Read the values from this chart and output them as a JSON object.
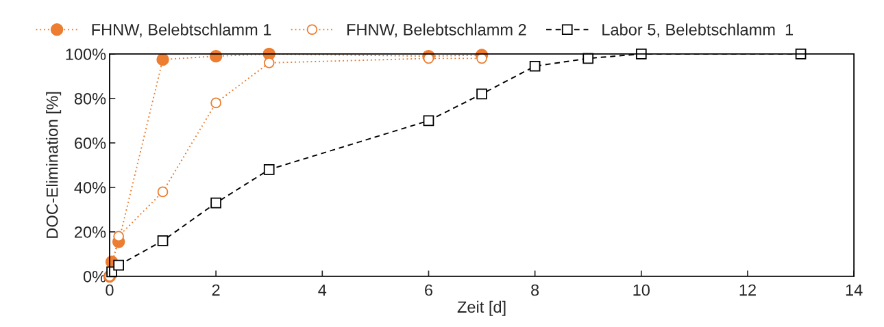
{
  "chart_data": {
    "type": "line",
    "xlabel": "Zeit [d]",
    "ylabel": "DOC-Elimination [%]",
    "xlim": [
      0,
      14
    ],
    "xticks": [
      0,
      2,
      4,
      6,
      8,
      10,
      12,
      14
    ],
    "ylim": [
      0,
      100
    ],
    "yticks": [
      {
        "value": 0,
        "label": "0%"
      },
      {
        "value": 20,
        "label": "20%"
      },
      {
        "value": 40,
        "label": "40%"
      },
      {
        "value": 60,
        "label": "60%"
      },
      {
        "value": 80,
        "label": "80%"
      },
      {
        "value": 100,
        "label": "100%"
      }
    ],
    "grid": false,
    "legend": "top",
    "series": [
      {
        "name": "FHNW, Belebtschlamm 1",
        "color": "#ed7d31",
        "marker": "circle",
        "line_style": "dotted",
        "x": [
          0,
          0.04,
          0.17,
          1,
          2,
          3,
          6,
          7
        ],
        "values": [
          0,
          6.5,
          15.5,
          97.5,
          99,
          100,
          99,
          99.5
        ]
      },
      {
        "name": "FHNW, Belebtschlamm 2",
        "color": "#ed7d31",
        "marker": "circle",
        "line_style": "dotted",
        "x": [
          0,
          0.17,
          1,
          2,
          3,
          6,
          7
        ],
        "values": [
          0,
          18,
          38,
          78,
          96,
          98,
          98
        ]
      },
      {
        "name": "Labor 5, Belebtschlamm  1",
        "color": "#000000",
        "marker": "square",
        "line_style": "dashed",
        "x": [
          0.04,
          0.17,
          1,
          2,
          3,
          6,
          7,
          8,
          9,
          10,
          13
        ],
        "values": [
          2,
          5,
          16,
          33,
          48,
          70,
          82,
          94.5,
          98,
          100,
          100
        ]
      }
    ]
  }
}
